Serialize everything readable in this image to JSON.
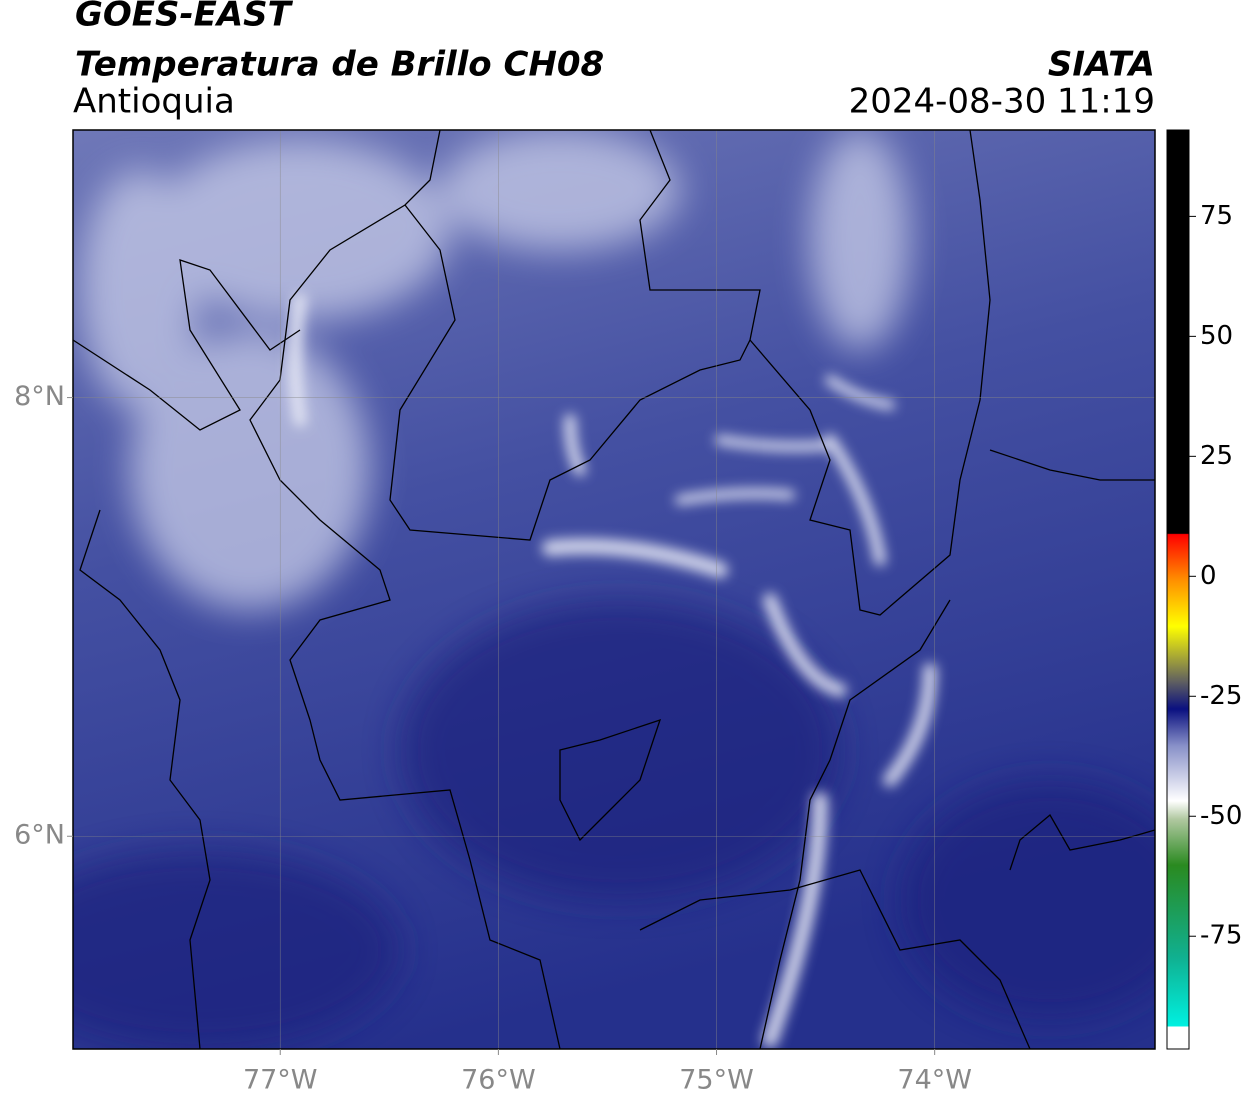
{
  "header": {
    "title": "GOES-EAST",
    "subtitle": "Temperatura de Brillo CH08",
    "region": "Antioquia",
    "source": "SIATA",
    "datetime": "2024-08-30 11:19"
  },
  "map": {
    "xlim": [
      -77.95,
      -72.99
    ],
    "ylim": [
      5.03,
      9.22
    ],
    "xticks": [
      {
        "value": -77,
        "label": "77°W"
      },
      {
        "value": -76,
        "label": "76°W"
      },
      {
        "value": -75,
        "label": "75°W"
      },
      {
        "value": -74,
        "label": "74°W"
      }
    ],
    "yticks": [
      {
        "value": 8,
        "label": "8°N"
      },
      {
        "value": 6,
        "label": "6°N"
      }
    ],
    "grid": true
  },
  "colorbar": {
    "lim": [
      -98.5,
      93
    ],
    "ticks": [
      75,
      50,
      25,
      0,
      -25,
      -50,
      -75
    ]
  }
}
